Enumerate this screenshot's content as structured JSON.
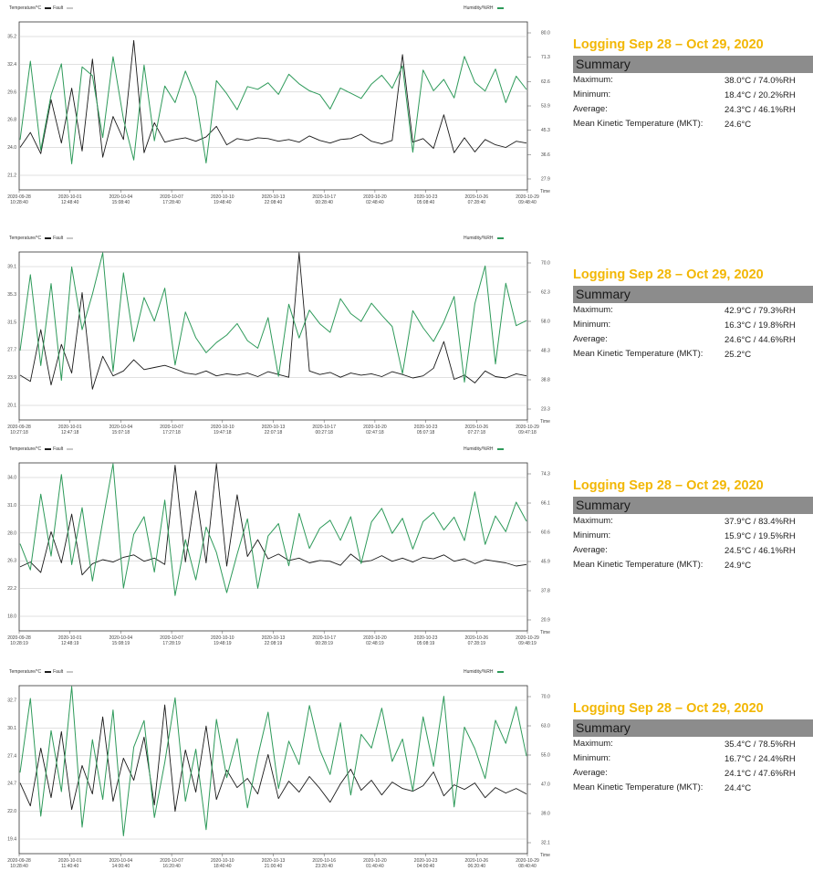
{
  "panels": [
    {
      "legend_left": "Temperature/°C",
      "legend_fault": "Fault",
      "legend_right": "Humidity/%RH",
      "summary": {
        "logging": "Logging Sep 28 – Oct 29, 2020",
        "header": "Summary",
        "maximum_label": "Maximum:",
        "maximum": "38.0°C / 74.0%RH",
        "minimum_label": "Minimum:",
        "minimum": "18.4°C / 20.2%RH",
        "average_label": "Average:",
        "average": "24.3°C / 46.1%RH",
        "mkt_label": "Mean Kinetic Temperature (MKT):",
        "mkt": "24.6°C"
      }
    },
    {
      "legend_left": "Temperature/°C",
      "legend_fault": "Fault",
      "legend_right": "Humidity/%RH",
      "summary": {
        "logging": "Logging Sep 28 – Oct 29, 2020",
        "header": "Summary",
        "maximum_label": "Maximum:",
        "maximum": "42.9°C / 79.3%RH",
        "minimum_label": "Minimum:",
        "minimum": "16.3°C / 19.8%RH",
        "average_label": "Average:",
        "average": "24.6°C / 44.6%RH",
        "mkt_label": "Mean Kinetic Temperature (MKT):",
        "mkt": "25.2°C"
      }
    },
    {
      "legend_left": "Temperature/°C",
      "legend_fault": "Fault",
      "legend_right": "Humidity/%RH",
      "summary": {
        "logging": "Logging Sep 28 – Oct 29, 2020",
        "header": "Summary",
        "maximum_label": "Maximum:",
        "maximum": "37.9°C / 83.4%RH",
        "minimum_label": "Minimum:",
        "minimum": "15.9°C / 19.5%RH",
        "average_label": "Average:",
        "average": "24.5°C / 46.1%RH",
        "mkt_label": "Mean Kinetic Temperature (MKT):",
        "mkt": "24.9°C"
      }
    },
    {
      "legend_left": "Temperature/°C",
      "legend_fault": "Fault",
      "legend_right": "Humidity/%RH",
      "summary": {
        "logging": "Logging Sep 28 – Oct 29, 2020",
        "header": "Summary",
        "maximum_label": "Maximum:",
        "maximum": "35.4°C / 78.5%RH",
        "minimum_label": "Minimum:",
        "minimum": "16.7°C / 24.4%RH",
        "average_label": "Average:",
        "average": "24.1°C / 47.6%RH",
        "mkt_label": "Mean Kinetic Temperature (MKT):",
        "mkt": "24.4°C"
      }
    }
  ],
  "colors": {
    "temperature": "#1a1a1a",
    "humidity": "#2e9a5a",
    "fault": "#c8c8c8",
    "title": "#f2b705",
    "summary_header": "#8c8c8c",
    "grid": "#c0c0c0"
  },
  "chart_data": [
    {
      "type": "line",
      "xlabel": "Time",
      "y_left_ticks": [
        "21.2",
        "24.0",
        "26.8",
        "29.6",
        "32.4",
        "35.2"
      ],
      "y_right_ticks": [
        "27.9",
        "36.6",
        "45.3",
        "53.9",
        "62.6",
        "71.3",
        "80.0"
      ],
      "x_ticks": [
        "2020-09-28 10:28:40",
        "2020-10-01 12:48:40",
        "2020-10-04 15:08:40",
        "2020-10-07 17:28:40",
        "2020-10-10 19:48:40",
        "2020-10-13 22:08:40",
        "2020-10-17 00:28:40",
        "2020-10-20 02:48:40",
        "2020-10-23 05:08:40",
        "2020-10-26 07:28:40",
        "2020-10-29 09:48:40"
      ],
      "series": [
        {
          "name": "Temperature/°C",
          "axis": "left",
          "values": [
            23.5,
            25.2,
            22.8,
            28.9,
            24.0,
            30.2,
            23.1,
            33.5,
            22.4,
            27.0,
            24.4,
            35.6,
            22.9,
            26.3,
            24.1,
            24.4,
            24.6,
            24.2,
            24.7,
            25.9,
            23.8,
            24.5,
            24.3,
            24.6,
            24.5,
            24.2,
            24.4,
            24.1,
            24.8,
            24.3,
            24.0,
            24.4,
            24.5,
            25.0,
            24.2,
            23.9,
            24.3,
            34.0,
            24.1,
            24.5,
            23.4,
            27.2,
            22.9,
            24.6,
            23.0,
            24.4,
            23.8,
            23.5,
            24.2,
            24.0
          ]
        },
        {
          "name": "Humidity/%RH",
          "axis": "right",
          "values": [
            40.2,
            72.1,
            36.0,
            58.4,
            71.0,
            30.5,
            69.8,
            66.2,
            41.1,
            73.9,
            48.6,
            32.0,
            70.5,
            39.8,
            62.0,
            55.3,
            68.1,
            57.6,
            30.8,
            64.2,
            58.9,
            52.4,
            61.8,
            60.7,
            63.3,
            58.6,
            66.8,
            62.9,
            60.1,
            58.5,
            52.7,
            61.2,
            59.1,
            57.0,
            62.8,
            66.4,
            61.1,
            70.2,
            35.2,
            68.5,
            60.1,
            64.7,
            57.2,
            74.0,
            63.5,
            60.0,
            68.9,
            55.3,
            66.0,
            60.6
          ]
        }
      ]
    },
    {
      "type": "line",
      "xlabel": "Time",
      "y_left_ticks": [
        "20.1",
        "23.9",
        "27.7",
        "31.5",
        "35.3",
        "39.1"
      ],
      "y_right_ticks": [
        "23.3",
        "38.8",
        "48.3",
        "58.0",
        "62.3",
        "70.0"
      ],
      "x_ticks": [
        "2020-09-28 10:27:18",
        "2020-10-01 12:47:18",
        "2020-10-04 15:07:18",
        "2020-10-07 17:27:18",
        "2020-10-10 19:47:18",
        "2020-10-13 22:07:18",
        "2020-10-17 00:27:18",
        "2020-10-20 02:47:18",
        "2020-10-23 05:07:18",
        "2020-10-26 07:27:18",
        "2020-10-29 09:47:18"
      ],
      "series": [
        {
          "name": "Temperature/°C",
          "axis": "left",
          "values": [
            24.0,
            23.1,
            30.5,
            22.6,
            28.4,
            24.3,
            35.8,
            22.0,
            26.7,
            23.9,
            24.6,
            26.2,
            24.8,
            25.1,
            25.4,
            24.9,
            24.3,
            24.1,
            24.6,
            23.9,
            24.2,
            24.0,
            24.3,
            23.8,
            24.5,
            24.1,
            23.7,
            42.9,
            24.6,
            24.1,
            24.4,
            23.7,
            24.3,
            24.0,
            24.2,
            23.8,
            24.5,
            24.1,
            23.6,
            23.9,
            25.0,
            28.8,
            23.4,
            24.0,
            22.9,
            24.6,
            23.8,
            23.6,
            24.2,
            23.9
          ]
        },
        {
          "name": "Humidity/%RH",
          "axis": "right",
          "values": [
            41.2,
            69.5,
            35.6,
            66.2,
            30.1,
            72.4,
            49.0,
            62.3,
            79.3,
            33.4,
            70.2,
            44.6,
            61.0,
            52.2,
            64.5,
            35.8,
            55.6,
            46.0,
            40.4,
            44.2,
            47.0,
            51.3,
            44.9,
            42.1,
            53.5,
            31.6,
            58.5,
            45.9,
            56.3,
            51.2,
            48.0,
            60.6,
            55.0,
            52.1,
            58.9,
            54.4,
            50.2,
            32.6,
            56.1,
            49.7,
            44.6,
            51.9,
            61.4,
            29.4,
            58.7,
            72.8,
            36.2,
            66.3,
            50.5,
            52.4
          ]
        }
      ]
    },
    {
      "type": "line",
      "xlabel": "Time",
      "y_left_ticks": [
        "18.0",
        "22.2",
        "26.3",
        "28.0",
        "31.0",
        "34.0"
      ],
      "y_right_ticks": [
        "20.9",
        "37.8",
        "45.9",
        "60.6",
        "66.1",
        "74.3"
      ],
      "x_ticks": [
        "2020-09-28 10:28:19",
        "2020-10-01 12:48:19",
        "2020-10-04 15:08:19",
        "2020-10-07 17:28:19",
        "2020-10-10 19:48:19",
        "2020-10-13 22:08:19",
        "2020-10-17 00:28:19",
        "2020-10-20 02:48:19",
        "2020-10-23 05:08:19",
        "2020-10-26 07:28:19",
        "2020-10-29 09:48:19"
      ],
      "series": [
        {
          "name": "Temperature/°C",
          "axis": "left",
          "values": [
            23.5,
            24.1,
            22.8,
            27.9,
            24.0,
            30.1,
            22.5,
            23.9,
            24.4,
            24.1,
            24.7,
            25.0,
            24.2,
            24.6,
            23.8,
            36.2,
            24.1,
            33.0,
            24.0,
            37.9,
            23.6,
            32.5,
            24.8,
            26.9,
            24.5,
            25.1,
            24.3,
            24.6,
            24.0,
            24.3,
            24.2,
            23.7,
            25.1,
            24.1,
            24.3,
            24.9,
            24.2,
            24.6,
            24.1,
            24.7,
            24.5,
            25.0,
            24.2,
            24.5,
            23.9,
            24.4,
            24.2,
            24.0,
            23.6,
            23.8
          ]
        },
        {
          "name": "Humidity/%RH",
          "axis": "right",
          "values": [
            48.9,
            38.1,
            69.4,
            43.8,
            77.5,
            40.3,
            63.8,
            33.5,
            58.2,
            83.4,
            30.6,
            52.8,
            60.1,
            37.2,
            66.9,
            27.5,
            50.6,
            34.0,
            55.8,
            45.3,
            28.7,
            44.6,
            59.2,
            30.5,
            52.1,
            57.2,
            39.8,
            61.4,
            47.0,
            55.3,
            58.6,
            50.3,
            60.1,
            40.7,
            57.9,
            63.5,
            53.2,
            59.4,
            46.7,
            58.1,
            61.8,
            54.6,
            59.9,
            50.2,
            70.3,
            48.6,
            60.4,
            53.9,
            66.1,
            58.2
          ]
        }
      ]
    },
    {
      "type": "line",
      "xlabel": "Time",
      "y_left_ticks": [
        "19.4",
        "22.0",
        "24.7",
        "27.4",
        "30.1",
        "32.7"
      ],
      "y_right_ticks": [
        "32.1",
        "39.0",
        "47.0",
        "55.0",
        "63.0",
        "70.0"
      ],
      "x_ticks": [
        "2020-09-28 10:28:40",
        "2020-10-01 11:40:40",
        "2020-10-04 14:00:40",
        "2020-10-07 16:20:40",
        "2020-10-10 18:40:40",
        "2020-10-13 21:00:40",
        "2020-10-16 23:20:40",
        "2020-10-20 01:40:40",
        "2020-10-23 04:00:40",
        "2020-10-26 06:20:40",
        "2020-10-29 08:40:40"
      ],
      "series": [
        {
          "name": "Temperature/°C",
          "axis": "left",
          "values": [
            24.6,
            22.1,
            28.4,
            23.0,
            30.2,
            21.7,
            26.5,
            23.4,
            31.8,
            22.6,
            27.3,
            24.9,
            29.6,
            22.2,
            33.1,
            21.5,
            28.2,
            23.6,
            30.8,
            22.8,
            26.0,
            24.1,
            25.1,
            23.4,
            27.7,
            22.9,
            24.8,
            23.6,
            25.3,
            24.0,
            22.5,
            24.5,
            26.1,
            23.8,
            24.9,
            23.3,
            24.7,
            24.0,
            23.7,
            24.3,
            25.8,
            23.2,
            24.4,
            23.9,
            24.6,
            23.0,
            24.1,
            23.5,
            24.0,
            23.4
          ]
        },
        {
          "name": "Humidity/%RH",
          "axis": "right",
          "values": [
            50.1,
            73.9,
            36.1,
            63.6,
            44.0,
            78.5,
            32.6,
            60.7,
            41.5,
            70.2,
            29.8,
            58.3,
            66.8,
            35.7,
            53.4,
            74.1,
            40.9,
            57.6,
            31.8,
            67.2,
            48.5,
            61.0,
            38.8,
            55.3,
            69.5,
            45.0,
            60.2,
            52.7,
            71.6,
            57.4,
            49.5,
            66.1,
            42.9,
            62.4,
            58.0,
            70.8,
            53.7,
            60.9,
            44.3,
            68.0,
            52.1,
            74.6,
            39.1,
            64.7,
            57.8,
            48.2,
            66.9,
            59.5,
            71.3,
            55.4
          ]
        }
      ]
    }
  ]
}
